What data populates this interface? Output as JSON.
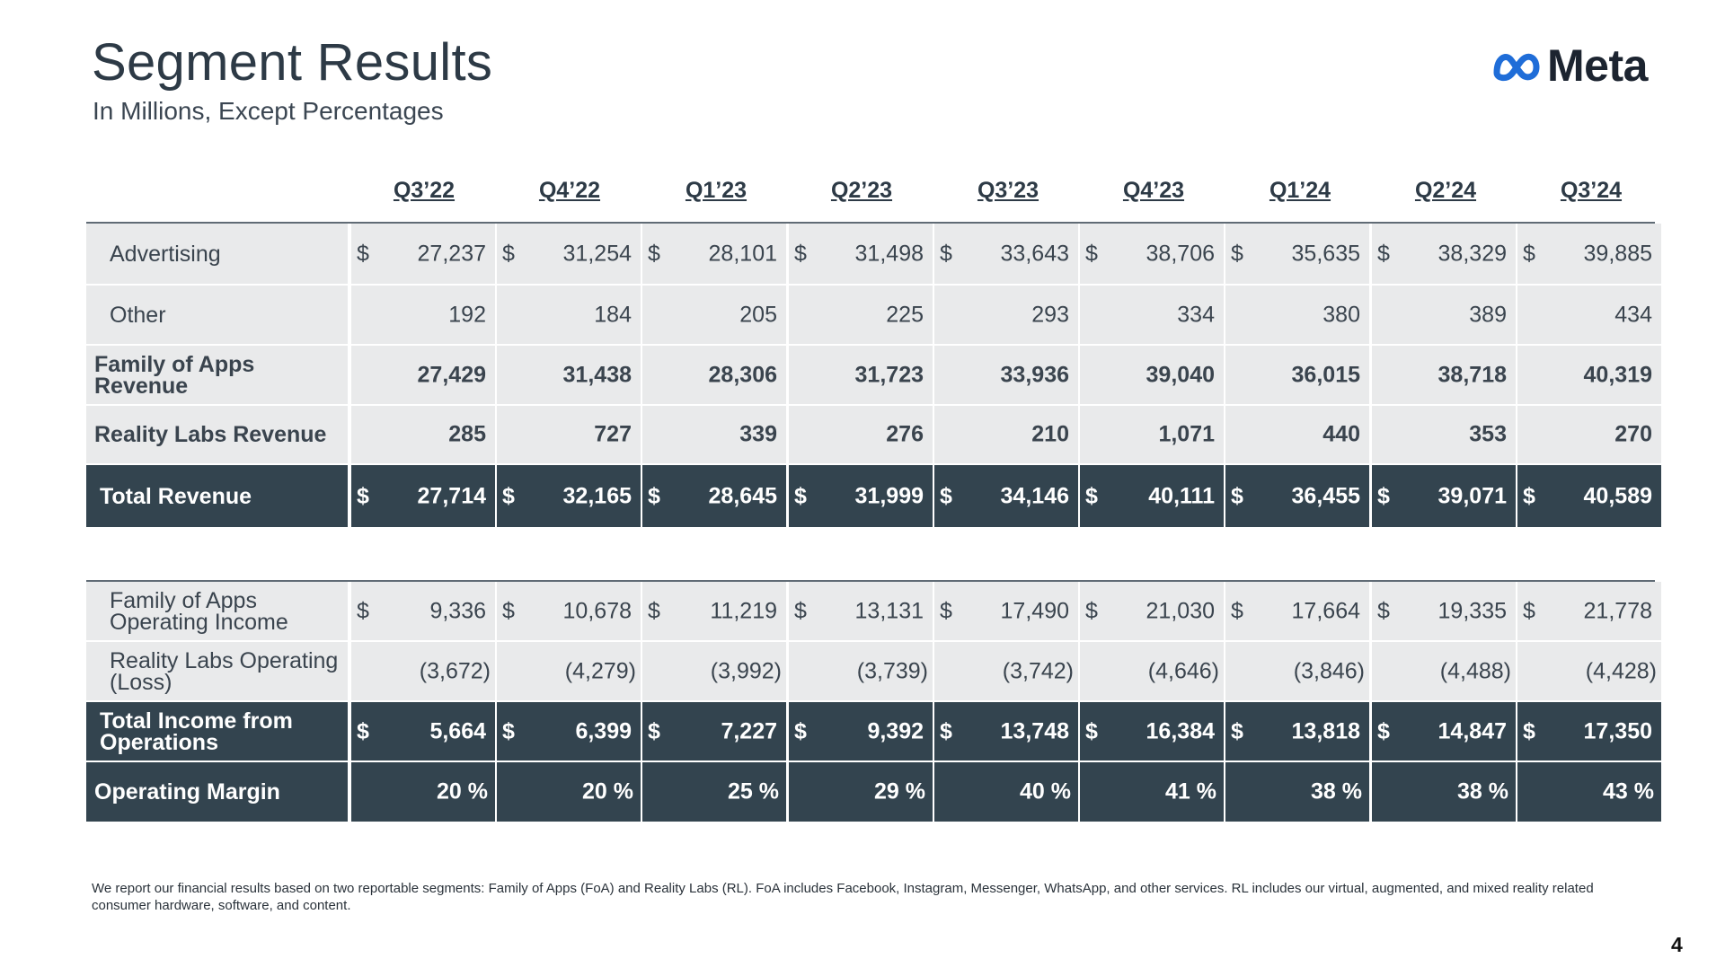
{
  "header": {
    "title": "Segment Results",
    "subtitle": "In Millions, Except Percentages",
    "logo_text": "Meta",
    "logo_icon": "meta-infinity-logo",
    "logo_color": "#1f6dd8"
  },
  "columns": [
    "Q3’22",
    "Q4’22",
    "Q1’23",
    "Q2’23",
    "Q3’23",
    "Q4’23",
    "Q1’24",
    "Q2’24",
    "Q3’24"
  ],
  "revenue_rows": [
    {
      "label": "Advertising",
      "dollar": "$",
      "values": [
        "27,237",
        "31,254",
        "28,101",
        "31,498",
        "33,643",
        "38,706",
        "35,635",
        "38,329",
        "39,885"
      ]
    },
    {
      "label": "Other",
      "dollar": "",
      "values": [
        "192",
        "184",
        "205",
        "225",
        "293",
        "334",
        "380",
        "389",
        "434"
      ]
    },
    {
      "label": "Family of Apps Revenue",
      "dollar": "",
      "values": [
        "27,429",
        "31,438",
        "28,306",
        "31,723",
        "33,936",
        "39,040",
        "36,015",
        "38,718",
        "40,319"
      ]
    },
    {
      "label": "Reality Labs Revenue",
      "dollar": "",
      "values": [
        "285",
        "727",
        "339",
        "276",
        "210",
        "1,071",
        "440",
        "353",
        "270"
      ]
    },
    {
      "label": "Total Revenue",
      "dollar": "$",
      "values": [
        "27,714",
        "32,165",
        "28,645",
        "31,999",
        "34,146",
        "40,111",
        "36,455",
        "39,071",
        "40,589"
      ]
    }
  ],
  "income_rows": [
    {
      "label": "Family of Apps Operating Income",
      "dollar": "$",
      "values": [
        "9,336",
        "10,678",
        "11,219",
        "13,131",
        "17,490",
        "21,030",
        "17,664",
        "19,335",
        "21,778"
      ]
    },
    {
      "label": "Reality Labs Operating (Loss)",
      "dollar": "",
      "values": [
        "(3,672)",
        "(4,279)",
        "(3,992)",
        "(3,739)",
        "(3,742)",
        "(4,646)",
        "(3,846)",
        "(4,488)",
        "(4,428)"
      ]
    },
    {
      "label": "Total Income from Operations",
      "dollar": "$",
      "values": [
        "5,664",
        "6,399",
        "7,227",
        "9,392",
        "13,748",
        "16,384",
        "13,818",
        "14,847",
        "17,350"
      ]
    },
    {
      "label": "Operating Margin",
      "dollar": "",
      "values": [
        "20 %",
        "20 %",
        "25 %",
        "29 %",
        "40 %",
        "41 %",
        "38 %",
        "38 %",
        "43 %"
      ]
    }
  ],
  "colors": {
    "dark_row_bg": "#33444f",
    "light_row_bg": "#e9eaeb",
    "title_color": "#2d3a46"
  },
  "footnote": "We report our financial results based on two reportable segments: Family of Apps (FoA) and Reality Labs (RL). FoA includes Facebook, Instagram, Messenger, WhatsApp, and other services. RL includes our virtual, augmented, and mixed reality related consumer hardware, software, and content.",
  "page_number": "4"
}
